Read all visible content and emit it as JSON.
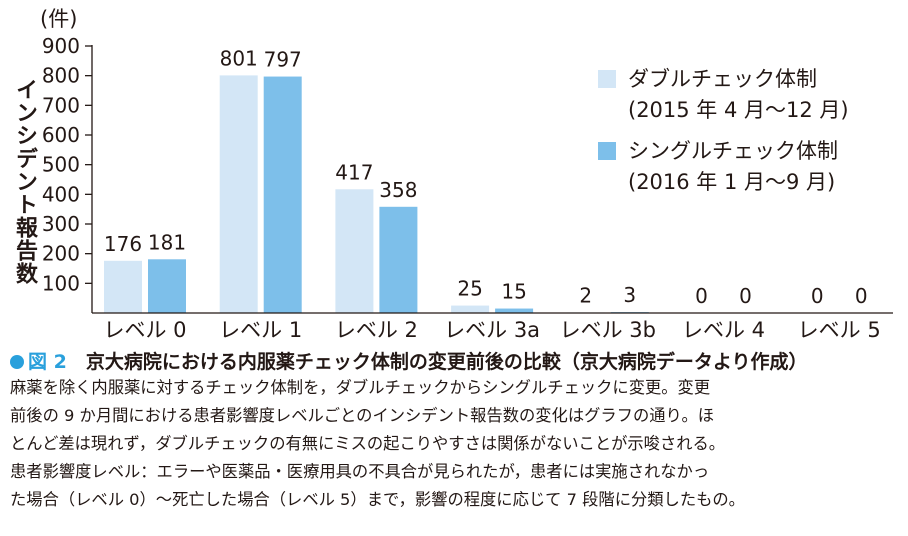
{
  "chart_data": {
    "type": "bar",
    "unit": "(件)",
    "ylabel": "インシデント報告数",
    "ylim": [
      0,
      900
    ],
    "yticks": [
      100,
      200,
      300,
      400,
      500,
      600,
      700,
      800,
      900
    ],
    "categories": [
      "レベル 0",
      "レベル 1",
      "レベル 2",
      "レベル 3a",
      "レベル 3b",
      "レベル 4",
      "レベル 5"
    ],
    "series": [
      {
        "name": "ダブルチェック体制",
        "period": "(2015 年 4 月〜12 月)",
        "color": "#d3e6f6",
        "values": [
          176,
          801,
          417,
          25,
          2,
          0,
          0
        ]
      },
      {
        "name": "シングルチェック体制",
        "period": "(2016 年 1 月〜9 月)",
        "color": "#7dbfea",
        "values": [
          181,
          797,
          358,
          15,
          3,
          0,
          0
        ]
      }
    ],
    "legend": "top-right",
    "grid": false
  },
  "caption": {
    "figure_label": "図 2",
    "title": "京大病院における内服薬チェック体制の変更前後の比較（京大病院データより作成）",
    "lines": [
      "麻薬を除く内服薬に対するチェック体制を，ダブルチェックからシングルチェックに変更。変更",
      "前後の 9 か月間における患者影響度レベルごとのインシデント報告数の変化はグラフの通り。ほ",
      "とんど差は現れず，ダブルチェックの有無にミスの起こりやすさは関係がないことが示唆される。",
      "患者影響度レベル：エラーや医薬品・医療用具の不具合が見られたが，患者には実施されなかっ",
      "た場合（レベル 0）〜死亡した場合（レベル 5）まで，影響の程度に応じて 7 段階に分類したもの。"
    ]
  }
}
